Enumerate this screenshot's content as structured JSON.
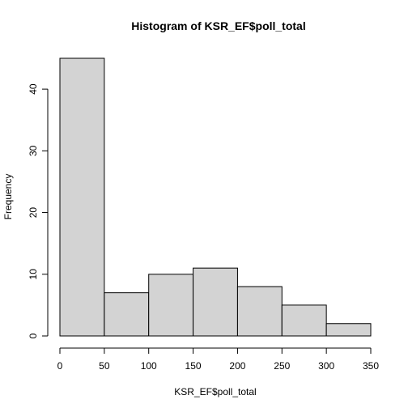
{
  "chart_data": {
    "type": "bar",
    "title": "Histogram of KSR_EF$poll_total",
    "xlabel": "KSR_EF$poll_total",
    "ylabel": "Frequency",
    "bins": [
      {
        "start": 0,
        "end": 50,
        "count": 45
      },
      {
        "start": 50,
        "end": 100,
        "count": 7
      },
      {
        "start": 100,
        "end": 150,
        "count": 10
      },
      {
        "start": 150,
        "end": 200,
        "count": 11
      },
      {
        "start": 200,
        "end": 250,
        "count": 8
      },
      {
        "start": 250,
        "end": 300,
        "count": 5
      },
      {
        "start": 300,
        "end": 350,
        "count": 2
      }
    ],
    "xticks": [
      0,
      50,
      100,
      150,
      200,
      250,
      300,
      350
    ],
    "yticks": [
      0,
      10,
      20,
      30,
      40
    ],
    "xlim": [
      0,
      350
    ],
    "ylim": [
      0,
      45
    ],
    "grid": false,
    "bar_color": "#d3d3d3",
    "edge_color": "#000000"
  }
}
